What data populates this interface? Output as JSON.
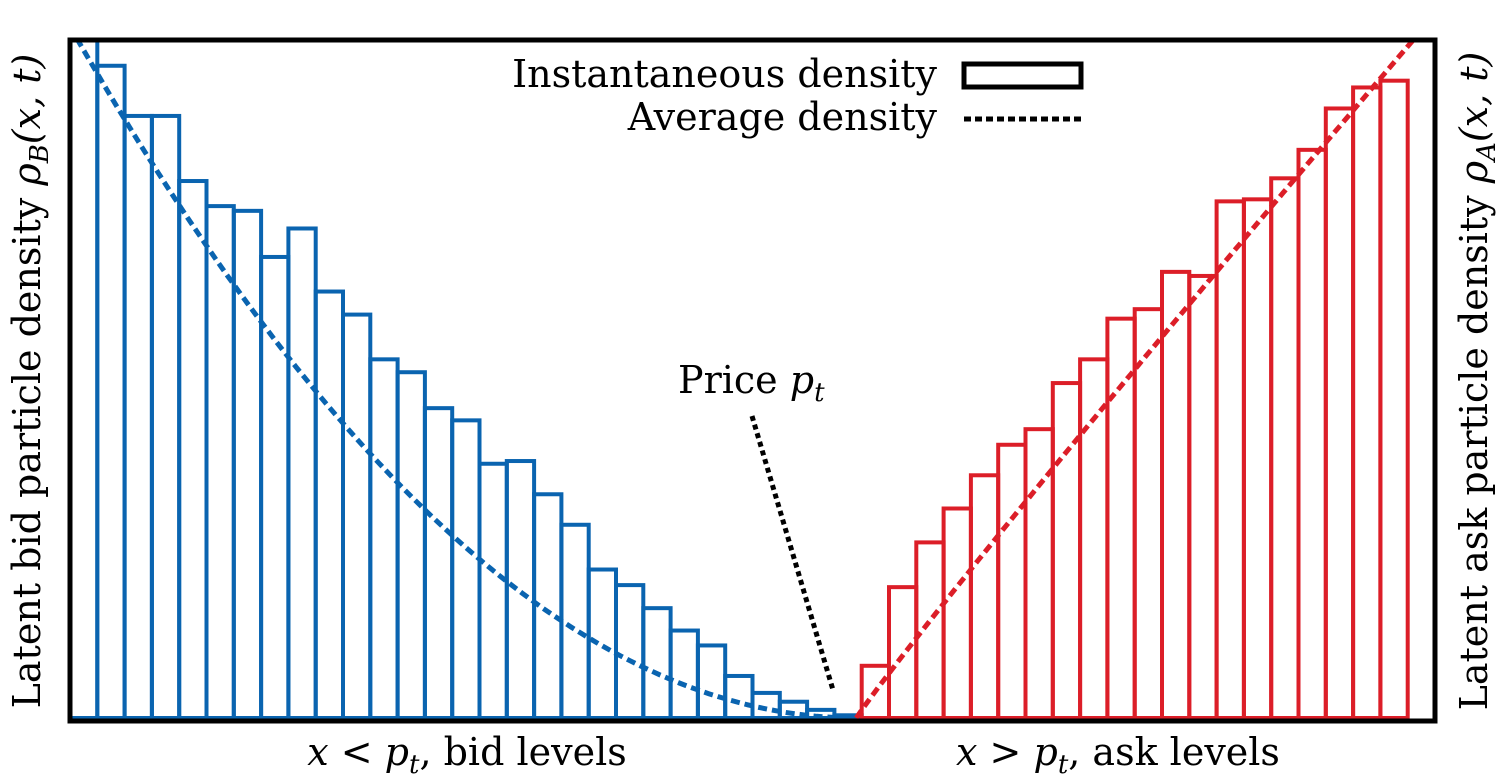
{
  "chart_data": {
    "type": "bar",
    "colors": {
      "bid": "#0a64b0",
      "ask": "#dc1e28",
      "frame": "#000000"
    },
    "price_label": "Price",
    "price_symbol": "p",
    "price_subscript": "t",
    "legend": {
      "placement": "top-center",
      "items": [
        {
          "label": "Instantaneous density",
          "style": "box"
        },
        {
          "label": "Average density",
          "style": "dotted"
        }
      ]
    },
    "left_ylabel": {
      "text": "Latent bid particle density ",
      "symbol": "ρ",
      "sub": "B",
      "args": "(x, t)"
    },
    "right_ylabel": {
      "text": "Latent ask particle density ",
      "symbol": "ρ",
      "sub": "A",
      "args": "(x, t)"
    },
    "xlabels": {
      "bid": {
        "math": "x < p",
        "sub": "t",
        "text": ", bid levels"
      },
      "ask": {
        "math": "x > p",
        "sub": "t",
        "text": ", ask levels"
      }
    },
    "xlim": [
      0,
      50
    ],
    "ylim": [
      0,
      1
    ],
    "price": 28.8,
    "bid_series": {
      "values": [
        1.01,
        0.962,
        0.888,
        0.888,
        0.792,
        0.755,
        0.748,
        0.68,
        0.722,
        0.629,
        0.595,
        0.529,
        0.51,
        0.457,
        0.439,
        0.375,
        0.379,
        0.33,
        0.285,
        0.219,
        0.196,
        0.162,
        0.129,
        0.107,
        0.062,
        0.037,
        0.024,
        0.012,
        0.004
      ]
    },
    "ask_series": {
      "start": 29,
      "values": [
        0.077,
        0.193,
        0.259,
        0.309,
        0.358,
        0.403,
        0.426,
        0.494,
        0.529,
        0.589,
        0.603,
        0.658,
        0.652,
        0.762,
        0.765,
        0.796,
        0.838,
        0.899,
        0.93,
        0.94
      ]
    },
    "bid_average_curve": "density ≈ 1.02·((28.8 − x)/28.8)^2",
    "ask_average_curve": "density ≈ 0.0553·(x − 28.8)^0.96"
  }
}
